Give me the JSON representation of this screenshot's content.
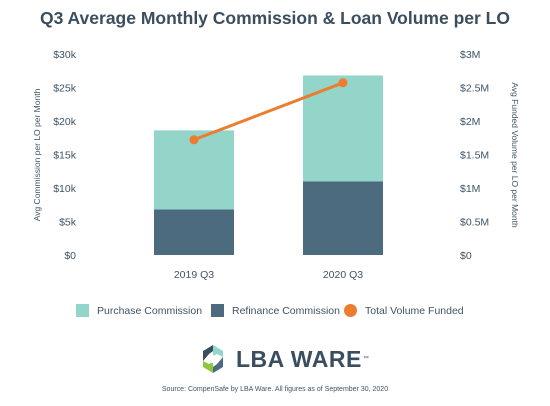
{
  "chart_data": {
    "type": "bar",
    "stacked": true,
    "title": "Q3 Average Monthly Commission & Loan Volume per LO",
    "categories": [
      "2019 Q3",
      "2020 Q3"
    ],
    "series": [
      {
        "name": "Refinance Commission",
        "type": "bar",
        "axis": "left",
        "color": "#4c6b7f",
        "values": [
          6800,
          11000
        ]
      },
      {
        "name": "Purchase Commission",
        "type": "bar",
        "axis": "left",
        "color": "#93d5c8",
        "values": [
          11800,
          15800
        ]
      },
      {
        "name": "Total Volume Funded",
        "type": "line",
        "axis": "right",
        "color": "#ec7c30",
        "values": [
          1720000,
          2570000
        ]
      }
    ],
    "ylabel": "Avg Commission per LO per Month",
    "y2label": "Avg Funded Volume per LO per Month",
    "ylim": [
      0,
      30000
    ],
    "y2lim": [
      0,
      3000000
    ],
    "yticks": [
      "$0",
      "$5k",
      "$10k",
      "$15k",
      "$20k",
      "$25k",
      "$30k"
    ],
    "y2ticks": [
      "$0",
      "$0.5M",
      "$1M",
      "$1.5M",
      "$2M",
      "$2.5M",
      "$3M"
    ],
    "grid": false,
    "legend_position": "bottom"
  },
  "legend": [
    {
      "label": "Purchase Commission",
      "color": "#93d5c8",
      "shape": "square"
    },
    {
      "label": "Refinance Commission",
      "color": "#4c6b7f",
      "shape": "square"
    },
    {
      "label": "Total Volume Funded",
      "color": "#ec7c30",
      "shape": "circle"
    }
  ],
  "logo": {
    "text": "LBA WARE",
    "tm": "™"
  },
  "source": "Source: CompenSafe by LBA Ware. All figures as of September 30, 2020"
}
